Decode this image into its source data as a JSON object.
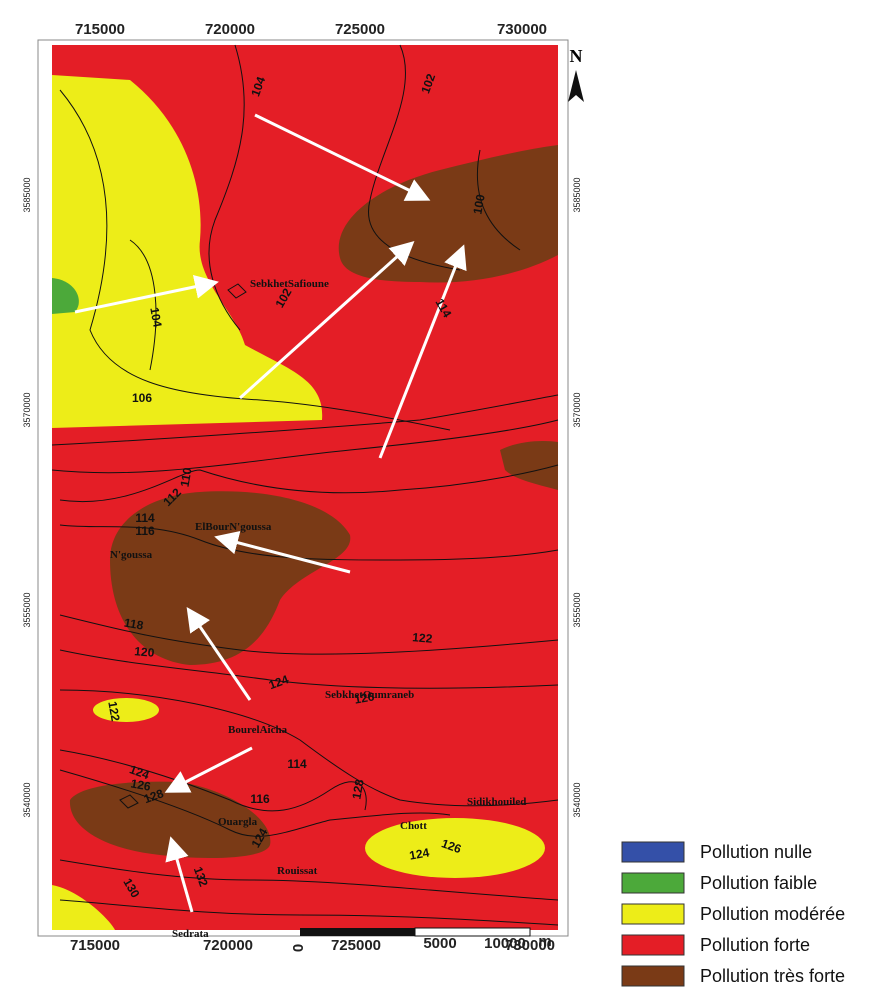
{
  "axes": {
    "x_labels_top": [
      715000,
      720000,
      725000,
      730000
    ],
    "x_labels_bottom": [
      715000,
      720000,
      725000,
      730000
    ],
    "y_labels_left": [
      3585000,
      3570000,
      3555000,
      3540000
    ],
    "y_labels_right": [
      3585000,
      3570000,
      3555000,
      3540000
    ]
  },
  "north": "N",
  "contour_labels": [
    104,
    102,
    100,
    104,
    102,
    114,
    106,
    110,
    112,
    114,
    116,
    118,
    120,
    122,
    124,
    126,
    122,
    114,
    124,
    126,
    128,
    116,
    128,
    124,
    126,
    124,
    130,
    132
  ],
  "places": [
    "SebkhetSafioune",
    "ElBourN'goussa",
    "N'goussa",
    "SebkhetOumraneb",
    "BourelAicha",
    "Sidikhouiled",
    "Ouargla",
    "Chott",
    "Rouissat",
    "Sedrata"
  ],
  "scale": {
    "labels": [
      0,
      5000,
      10000
    ],
    "unit": "m"
  },
  "legend": [
    {
      "label": "Pollution nulle",
      "color": "#3450a8"
    },
    {
      "label": "Pollution faible",
      "color": "#4ca93a"
    },
    {
      "label": "Pollution modérée",
      "color": "#eded18"
    },
    {
      "label": "Pollution forte",
      "color": "#e41e26"
    },
    {
      "label": "Pollution très forte",
      "color": "#7a3a16"
    }
  ]
}
